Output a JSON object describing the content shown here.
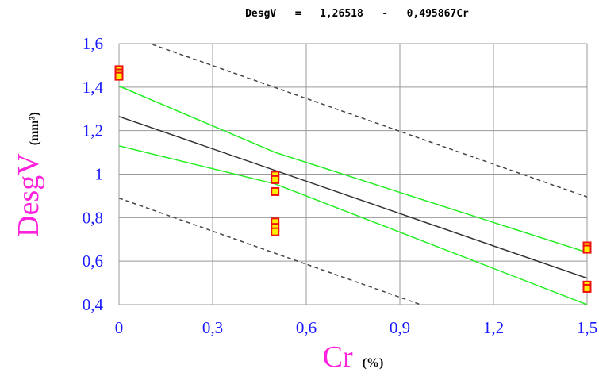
{
  "chart_data": {
    "type": "scatter",
    "title": "DesgV   =   1,26518   -   0,495867Cr",
    "xlabel": "Cr",
    "xlabel_unit": "(%)",
    "ylabel": "DesgV",
    "ylabel_unit": "(mm³)",
    "xlim": [
      0,
      1.5
    ],
    "ylim": [
      0.4,
      1.6
    ],
    "x_ticks": [
      0,
      0.3,
      0.6,
      0.9,
      1.2,
      1.5
    ],
    "x_tick_labels": [
      "0",
      "0,3",
      "0,6",
      "0,9",
      "1,2",
      "1,5"
    ],
    "y_ticks": [
      0.4,
      0.6,
      0.8,
      1.0,
      1.2,
      1.4,
      1.6
    ],
    "y_tick_labels": [
      "0,4",
      "0,6",
      "0,8",
      "1",
      "1,2",
      "1,4",
      "1,6"
    ],
    "grid": true,
    "points": {
      "x": [
        0,
        0,
        0,
        0.5,
        0.5,
        0.5,
        0.5,
        0.5,
        0.5,
        1.5,
        1.5,
        1.5,
        1.5
      ],
      "y": [
        1.48,
        1.465,
        1.45,
        0.995,
        0.975,
        0.92,
        0.78,
        0.755,
        0.735,
        0.67,
        0.655,
        0.49,
        0.475
      ]
    },
    "regression_line": {
      "intercept": 1.26518,
      "slope": -0.495867
    },
    "confidence_band": {
      "upper": {
        "x": [
          0,
          0.5,
          1.5
        ],
        "y": [
          1.405,
          1.1,
          0.64
        ]
      },
      "lower": {
        "x": [
          0,
          0.5,
          1.5
        ],
        "y": [
          1.13,
          0.955,
          0.4
        ]
      }
    },
    "prediction_band": {
      "upper": {
        "x": [
          0.0,
          1.5
        ],
        "y": [
          1.65,
          0.895
        ]
      },
      "lower": {
        "x": [
          0.0,
          1.5
        ],
        "y": [
          0.89,
          0.13
        ]
      }
    },
    "colors": {
      "points_fill": "#ffee00",
      "points_edge": "#ee1111",
      "regression": "#333333",
      "confidence": "#22ee22",
      "prediction": "#444444",
      "grid": "#999999",
      "tick_labels": "#1a1aff",
      "axis_name": "#ff22dd"
    }
  }
}
